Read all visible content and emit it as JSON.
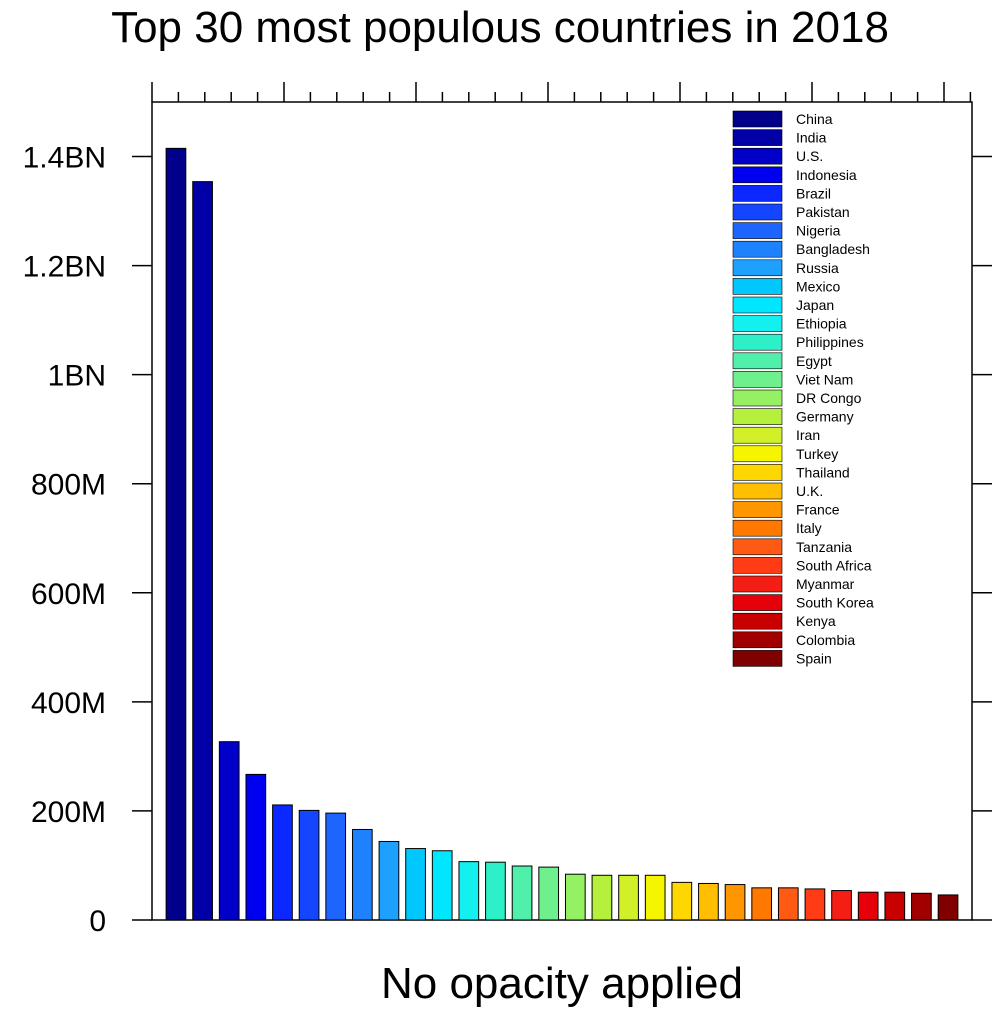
{
  "chart_data": {
    "type": "bar",
    "title": "Top 30 most populous countries in 2018",
    "xlabel": "No opacity applied",
    "ylabel": "",
    "ylim": [
      0,
      1500000000
    ],
    "yticks": [
      {
        "value": 0,
        "label": "0"
      },
      {
        "value": 200000000,
        "label": "200M"
      },
      {
        "value": 400000000,
        "label": "400M"
      },
      {
        "value": 600000000,
        "label": "600M"
      },
      {
        "value": 800000000,
        "label": "800M"
      },
      {
        "value": 1000000000,
        "label": "1BN"
      },
      {
        "value": 1200000000,
        "label": "1.2BN"
      },
      {
        "value": 1400000000,
        "label": "1.4BN"
      }
    ],
    "legend_position": "top-right",
    "categories": [
      "China",
      "India",
      "U.S.",
      "Indonesia",
      "Brazil",
      "Pakistan",
      "Nigeria",
      "Bangladesh",
      "Russia",
      "Mexico",
      "Japan",
      "Ethiopia",
      "Philippines",
      "Egypt",
      "Viet Nam",
      "DR Congo",
      "Germany",
      "Iran",
      "Turkey",
      "Thailand",
      "U.K.",
      "France",
      "Italy",
      "Tanzania",
      "South Africa",
      "Myanmar",
      "South Korea",
      "Kenya",
      "Colombia",
      "Spain"
    ],
    "values": [
      1415000000,
      1354000000,
      327000000,
      267000000,
      211000000,
      201000000,
      196000000,
      166000000,
      144000000,
      131000000,
      127000000,
      107000000,
      106000000,
      99000000,
      97000000,
      84000000,
      82000000,
      82000000,
      82000000,
      69000000,
      67000000,
      65000000,
      59000000,
      59000000,
      57000000,
      54000000,
      51000000,
      51000000,
      49000000,
      46000000
    ],
    "colors": [
      "#00008B",
      "#0000A6",
      "#0000C8",
      "#0000F0",
      "#0A28FF",
      "#1446FF",
      "#1E64FF",
      "#1E82FF",
      "#1EA0FF",
      "#00C8FF",
      "#00E6FF",
      "#14F0F0",
      "#2DF0C8",
      "#50F0AA",
      "#6EF08C",
      "#96F064",
      "#B4F03C",
      "#D2F028",
      "#F5F500",
      "#FFD700",
      "#FFBE00",
      "#FF9600",
      "#FF7800",
      "#FF5A14",
      "#FF3C14",
      "#F51E14",
      "#E6000A",
      "#C80000",
      "#A00000",
      "#800000"
    ]
  }
}
